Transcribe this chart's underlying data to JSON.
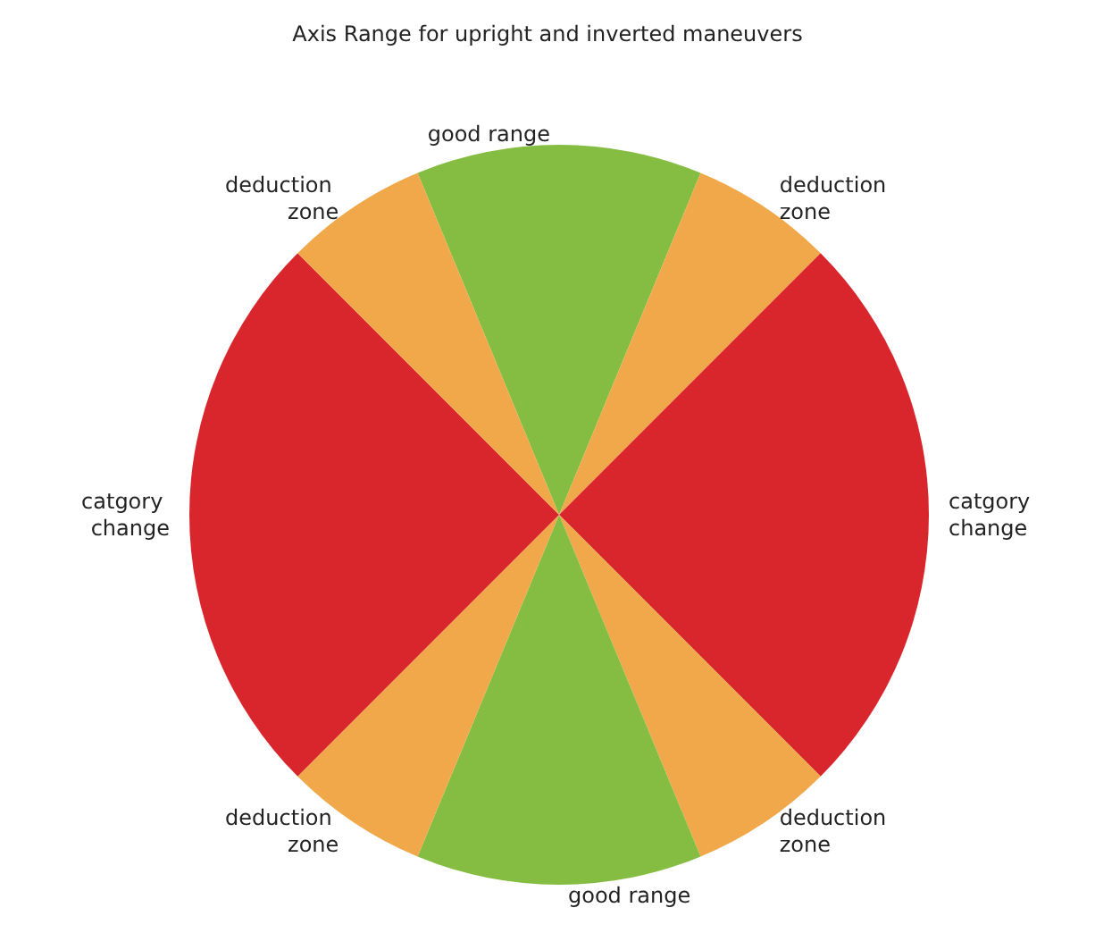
{
  "chart_data": {
    "type": "pie",
    "title": "Axis Range for upright and inverted maneuvers",
    "categories": [
      "good range",
      "deduction zone",
      "catgory change",
      "deduction zone",
      "good range",
      "deduction zone",
      "catgory change",
      "deduction zone"
    ],
    "values": [
      12.5,
      6.25,
      25,
      6.25,
      12.5,
      6.25,
      25,
      6.25
    ],
    "colors": [
      "#84bd41",
      "#f0a84a",
      "#d9262c",
      "#f0a84a",
      "#84bd41",
      "#f0a84a",
      "#d9262c",
      "#f0a84a"
    ],
    "legend": false
  }
}
